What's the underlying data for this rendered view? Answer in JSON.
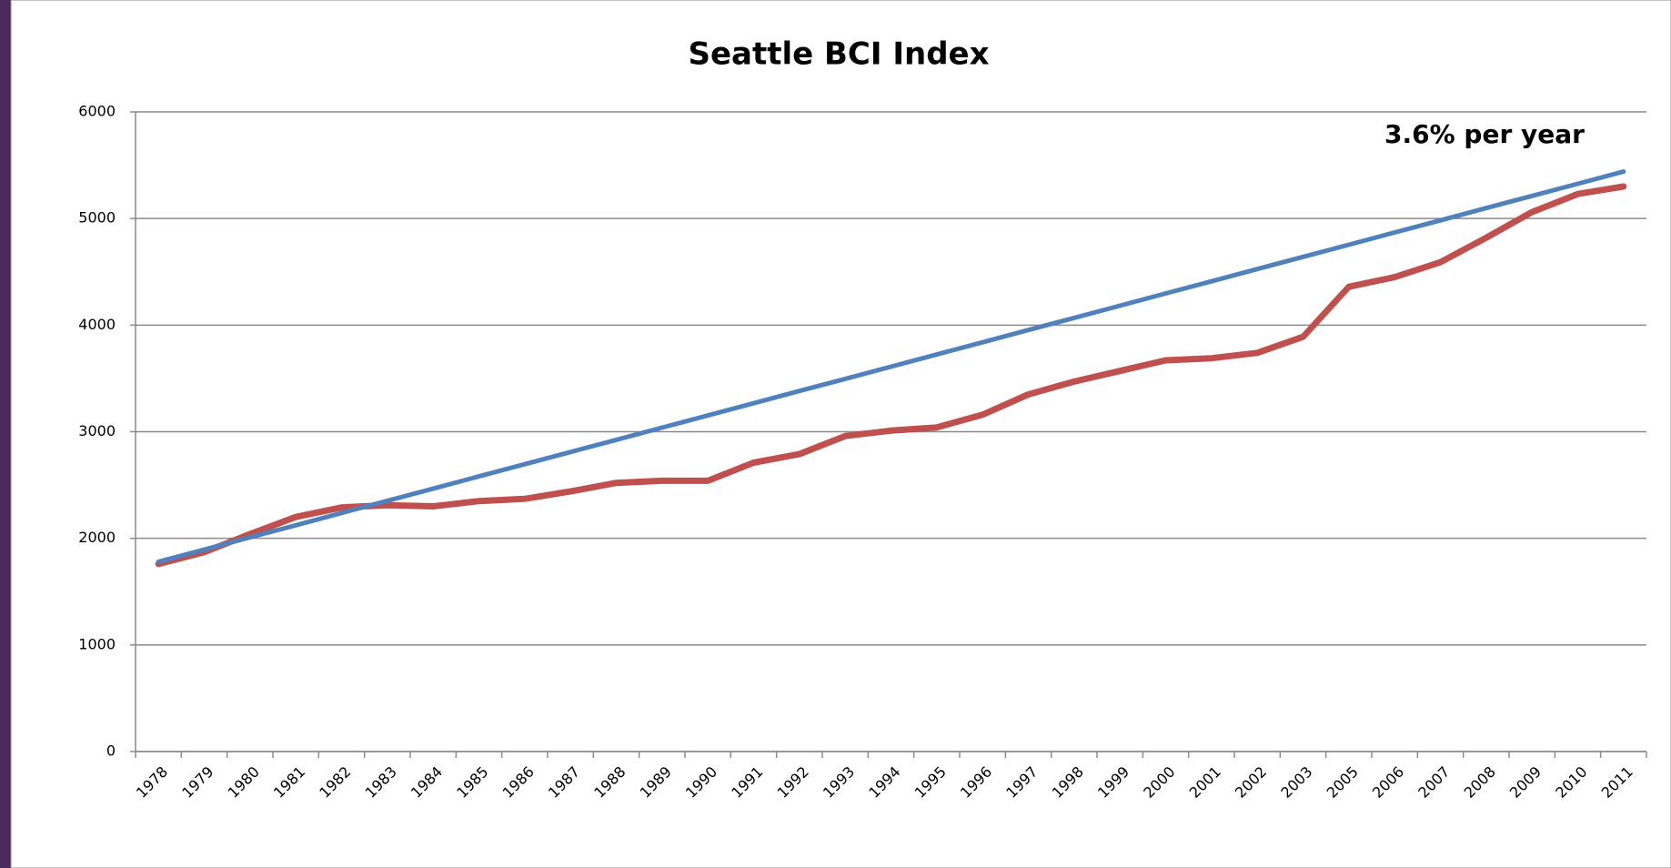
{
  "chart_data": {
    "type": "line",
    "title": "Seattle BCI Index",
    "annotation": "3.6% per year",
    "categories": [
      "1978",
      "1979",
      "1980",
      "1981",
      "1982",
      "1983",
      "1984",
      "1985",
      "1986",
      "1987",
      "1988",
      "1989",
      "1990",
      "1991",
      "1992",
      "1993",
      "1994",
      "1995",
      "1996",
      "1997",
      "1998",
      "1999",
      "2000",
      "2001",
      "2002",
      "2003",
      "2005",
      "2006",
      "2007",
      "2008",
      "2009",
      "2010",
      "2011"
    ],
    "series": [
      {
        "color": "#c0504d",
        "values": [
          1760,
          1870,
          2040,
          2200,
          2290,
          2310,
          2300,
          2350,
          2370,
          2440,
          2520,
          2540,
          2540,
          2710,
          2790,
          2960,
          3010,
          3040,
          3160,
          3350,
          3470,
          3570,
          3670,
          3690,
          3740,
          3890,
          4360,
          4450,
          4590,
          4820,
          5060,
          5230,
          5300
        ]
      },
      {
        "color": "#4f81bd",
        "values": [
          1780,
          1894,
          2009,
          2123,
          2238,
          2352,
          2466,
          2581,
          2695,
          2810,
          2924,
          3038,
          3153,
          3267,
          3382,
          3496,
          3610,
          3725,
          3839,
          3954,
          4068,
          4182,
          4297,
          4411,
          4526,
          4640,
          4754,
          4869,
          4983,
          5098,
          5212,
          5326,
          5440
        ]
      }
    ],
    "ylim": [
      0,
      6000
    ],
    "yticks": [
      0,
      1000,
      2000,
      3000,
      4000,
      5000,
      6000
    ],
    "grid": true
  }
}
